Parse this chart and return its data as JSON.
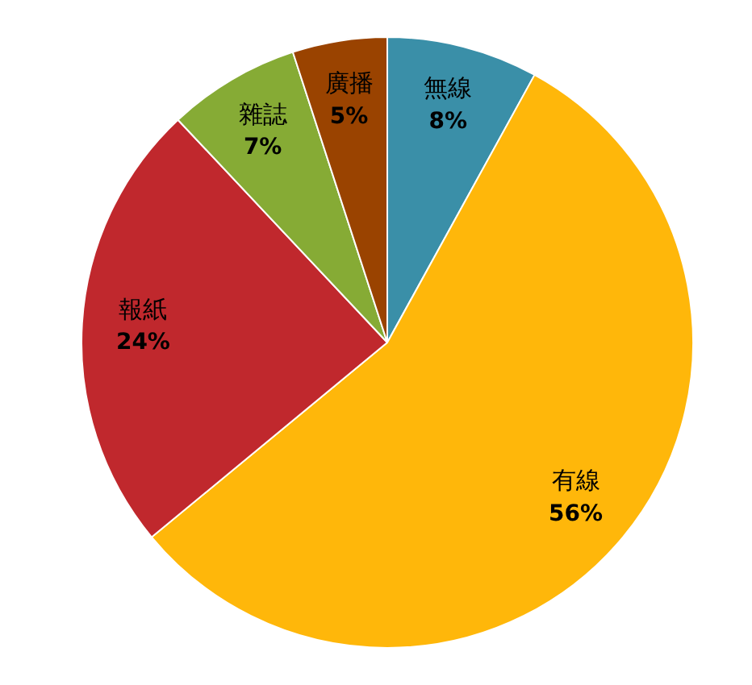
{
  "chart_data": {
    "type": "pie",
    "categories": [
      "無線",
      "有線",
      "報紙",
      "雜誌",
      "廣播"
    ],
    "values": [
      8,
      56,
      24,
      7,
      5
    ],
    "colors": [
      "#3a8fa8",
      "#ffb70a",
      "#c0282d",
      "#86ab35",
      "#9a4300"
    ],
    "value_labels": [
      "8%",
      "56%",
      "24%",
      "7%",
      "5%"
    ],
    "legend": false
  }
}
